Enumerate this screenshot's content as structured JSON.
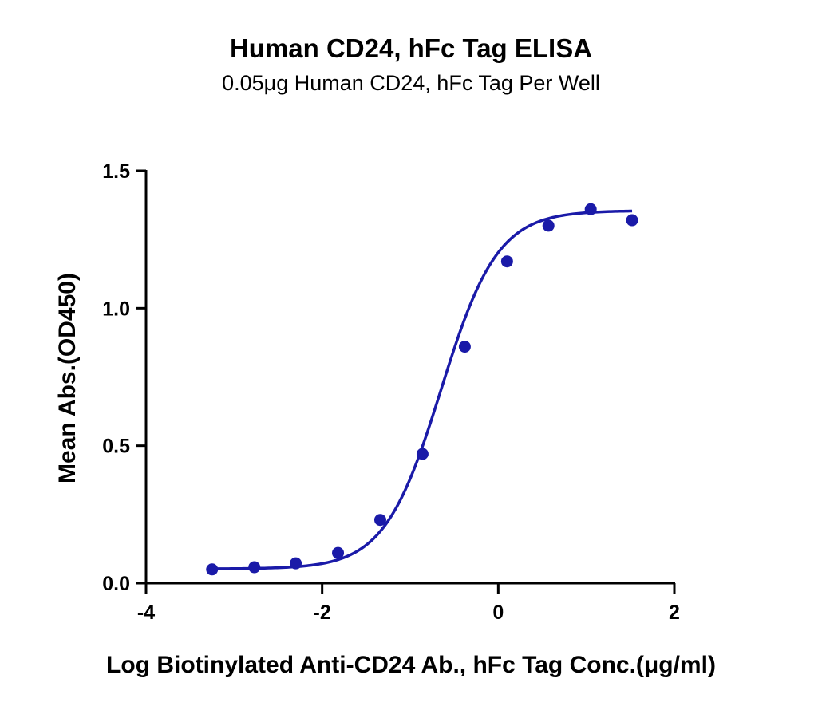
{
  "chart_data": {
    "type": "scatter",
    "title": "Human CD24, hFc Tag ELISA",
    "subtitle": "0.05μg Human CD24, hFc Tag Per Well",
    "xlabel": "Log Biotinylated Anti-CD24 Ab., hFc Tag Conc.(μg/ml)",
    "ylabel": "Mean Abs.(OD450)",
    "xlim": [
      -4,
      2
    ],
    "ylim": [
      0,
      1.5
    ],
    "x_ticks": [
      -4,
      -2,
      0,
      2
    ],
    "x_tick_labels": [
      "-4",
      "-2",
      "0",
      "2"
    ],
    "y_ticks": [
      0,
      0.5,
      1.0,
      1.5
    ],
    "y_tick_labels": [
      "0.0",
      "0.5",
      "1.0",
      "1.5"
    ],
    "grid": false,
    "legend": "none",
    "series": [
      {
        "color": "#1a1aa8",
        "points": [
          {
            "x": -3.25,
            "y": 0.05
          },
          {
            "x": -2.77,
            "y": 0.058
          },
          {
            "x": -2.3,
            "y": 0.072
          },
          {
            "x": -1.82,
            "y": 0.11
          },
          {
            "x": -1.34,
            "y": 0.23
          },
          {
            "x": -0.86,
            "y": 0.47
          },
          {
            "x": -0.38,
            "y": 0.86
          },
          {
            "x": 0.1,
            "y": 1.17
          },
          {
            "x": 0.57,
            "y": 1.3
          },
          {
            "x": 1.05,
            "y": 1.36
          },
          {
            "x": 1.52,
            "y": 1.32
          }
        ],
        "fit": {
          "model": "4PL",
          "bottom": 0.052,
          "top": 1.355,
          "logEC50": -0.65,
          "hill_slope": 1.35
        }
      }
    ]
  }
}
